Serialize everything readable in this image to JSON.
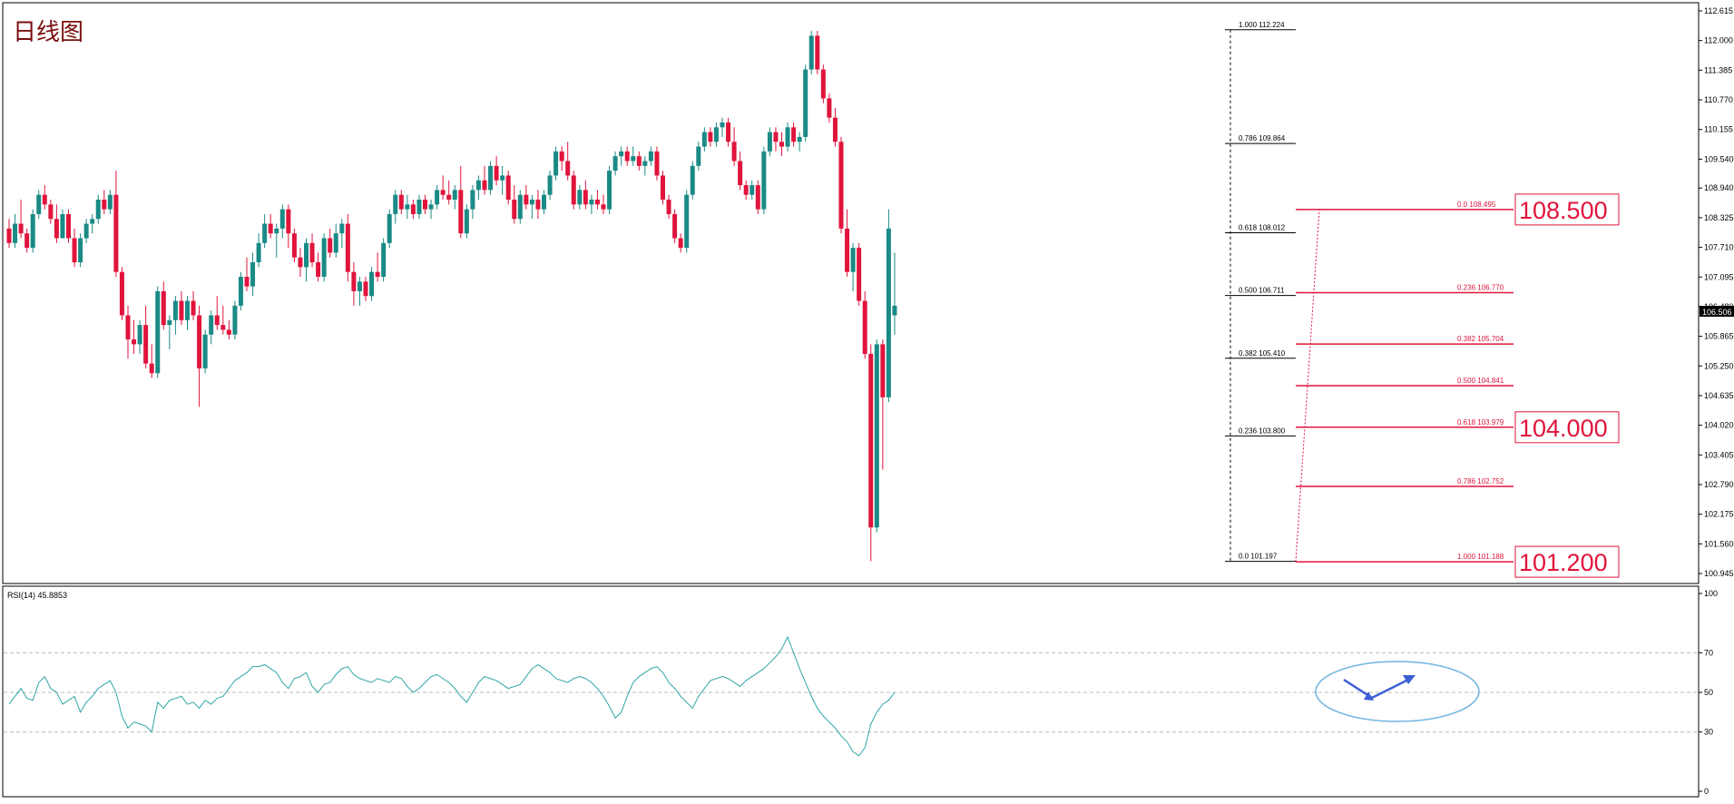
{
  "title": "日线图",
  "rsi_label": "RSI(14) 45.8853",
  "current_price": "106.506",
  "colors": {
    "bull": "#1a8a86",
    "bear": "#e0143c",
    "fib_left": "#000000",
    "fib_right": "#e0143c",
    "rsi_line": "#2fa6a6",
    "ellipse": "#6fb3e0",
    "arrow": "#3d5fd6",
    "title": "#7a0f0f"
  },
  "chart_data": [
    {
      "type": "candlestick",
      "title": "日线图",
      "ylim": [
        100.945,
        112.615
      ],
      "y_ticks": [
        "112.615",
        "112.000",
        "111.385",
        "110.770",
        "110.155",
        "109.540",
        "108.940",
        "108.325",
        "107.710",
        "107.095",
        "106.480",
        "105.865",
        "105.250",
        "104.635",
        "104.020",
        "103.405",
        "102.790",
        "102.175",
        "101.560",
        "100.945"
      ],
      "candles": [
        [
          108.1,
          108.3,
          107.7,
          107.8
        ],
        [
          107.8,
          108.4,
          107.7,
          108.2
        ],
        [
          108.2,
          108.7,
          107.9,
          108.0
        ],
        [
          108.0,
          108.1,
          107.6,
          107.7
        ],
        [
          107.7,
          108.5,
          107.6,
          108.4
        ],
        [
          108.4,
          108.9,
          108.3,
          108.8
        ],
        [
          108.8,
          109.0,
          108.5,
          108.6
        ],
        [
          108.6,
          108.7,
          108.2,
          108.3
        ],
        [
          108.3,
          108.6,
          107.8,
          107.9
        ],
        [
          107.9,
          108.5,
          107.9,
          108.4
        ],
        [
          108.4,
          108.5,
          107.8,
          107.9
        ],
        [
          107.9,
          108.1,
          107.3,
          107.4
        ],
        [
          107.4,
          108.0,
          107.3,
          107.9
        ],
        [
          107.9,
          108.3,
          107.8,
          108.2
        ],
        [
          108.2,
          108.4,
          108.0,
          108.3
        ],
        [
          108.3,
          108.8,
          108.2,
          108.7
        ],
        [
          108.7,
          108.9,
          108.4,
          108.5
        ],
        [
          108.5,
          108.9,
          108.4,
          108.8
        ],
        [
          108.8,
          109.3,
          107.1,
          107.2
        ],
        [
          107.2,
          107.3,
          106.2,
          106.3
        ],
        [
          106.3,
          106.5,
          105.4,
          105.8
        ],
        [
          105.8,
          106.2,
          105.5,
          105.7
        ],
        [
          105.7,
          106.2,
          105.5,
          106.1
        ],
        [
          106.1,
          106.5,
          105.2,
          105.3
        ],
        [
          105.3,
          105.7,
          105.0,
          105.1
        ],
        [
          105.1,
          106.9,
          105.0,
          106.8
        ],
        [
          106.8,
          107.0,
          106.0,
          106.1
        ],
        [
          106.1,
          106.3,
          105.6,
          106.2
        ],
        [
          106.2,
          106.7,
          105.9,
          106.6
        ],
        [
          106.6,
          106.8,
          106.1,
          106.2
        ],
        [
          106.2,
          106.7,
          106.0,
          106.6
        ],
        [
          106.6,
          106.8,
          106.2,
          106.3
        ],
        [
          106.3,
          106.5,
          104.4,
          105.2
        ],
        [
          105.2,
          106.0,
          105.1,
          105.9
        ],
        [
          105.9,
          106.4,
          105.7,
          106.3
        ],
        [
          106.3,
          106.7,
          106.0,
          106.1
        ],
        [
          106.1,
          106.5,
          105.9,
          106.0
        ],
        [
          106.0,
          106.2,
          105.8,
          105.9
        ],
        [
          105.9,
          106.6,
          105.8,
          106.5
        ],
        [
          106.5,
          107.2,
          106.4,
          107.1
        ],
        [
          107.1,
          107.5,
          106.8,
          106.9
        ],
        [
          106.9,
          107.6,
          106.7,
          107.4
        ],
        [
          107.4,
          108.0,
          107.3,
          107.8
        ],
        [
          107.8,
          108.4,
          107.7,
          108.2
        ],
        [
          108.2,
          108.4,
          107.9,
          108.0
        ],
        [
          108.0,
          108.2,
          107.5,
          108.1
        ],
        [
          108.1,
          108.6,
          107.9,
          108.5
        ],
        [
          108.5,
          108.6,
          107.7,
          108.0
        ],
        [
          108.0,
          108.1,
          107.4,
          107.5
        ],
        [
          107.5,
          107.7,
          107.1,
          107.3
        ],
        [
          107.3,
          107.9,
          107.0,
          107.8
        ],
        [
          107.8,
          108.0,
          107.3,
          107.4
        ],
        [
          107.4,
          107.6,
          107.0,
          107.1
        ],
        [
          107.1,
          108.0,
          107.0,
          107.9
        ],
        [
          107.9,
          108.1,
          107.5,
          107.6
        ],
        [
          107.6,
          108.2,
          107.5,
          108.0
        ],
        [
          108.0,
          108.3,
          107.7,
          108.2
        ],
        [
          108.2,
          108.4,
          107.0,
          107.2
        ],
        [
          107.2,
          107.4,
          106.5,
          106.8
        ],
        [
          106.8,
          107.1,
          106.5,
          107.0
        ],
        [
          107.0,
          107.1,
          106.6,
          106.7
        ],
        [
          106.7,
          107.3,
          106.6,
          107.2
        ],
        [
          107.2,
          107.6,
          107.0,
          107.1
        ],
        [
          107.1,
          107.9,
          107.0,
          107.8
        ],
        [
          107.8,
          108.5,
          107.7,
          108.4
        ],
        [
          108.4,
          108.9,
          108.2,
          108.8
        ],
        [
          108.8,
          108.9,
          108.4,
          108.5
        ],
        [
          108.5,
          108.8,
          108.3,
          108.6
        ],
        [
          108.6,
          108.7,
          108.3,
          108.4
        ],
        [
          108.4,
          108.8,
          108.3,
          108.7
        ],
        [
          108.7,
          108.8,
          108.4,
          108.5
        ],
        [
          108.5,
          108.7,
          108.3,
          108.6
        ],
        [
          108.6,
          109.0,
          108.5,
          108.9
        ],
        [
          108.9,
          109.2,
          108.7,
          108.8
        ],
        [
          108.8,
          109.1,
          108.6,
          108.7
        ],
        [
          108.7,
          109.0,
          108.5,
          108.9
        ],
        [
          108.9,
          109.4,
          107.9,
          108.0
        ],
        [
          108.0,
          108.6,
          107.9,
          108.5
        ],
        [
          108.5,
          109.0,
          108.3,
          108.9
        ],
        [
          108.9,
          109.2,
          108.7,
          109.1
        ],
        [
          109.1,
          109.4,
          108.8,
          108.9
        ],
        [
          108.9,
          109.5,
          108.8,
          109.4
        ],
        [
          109.4,
          109.6,
          109.0,
          109.1
        ],
        [
          109.1,
          109.4,
          108.8,
          109.2
        ],
        [
          109.2,
          109.3,
          108.6,
          108.7
        ],
        [
          108.7,
          109.0,
          108.2,
          108.3
        ],
        [
          108.3,
          108.9,
          108.2,
          108.8
        ],
        [
          108.8,
          109.0,
          108.5,
          108.6
        ],
        [
          108.6,
          108.8,
          108.3,
          108.7
        ],
        [
          108.7,
          108.9,
          108.3,
          108.5
        ],
        [
          108.5,
          108.9,
          108.4,
          108.8
        ],
        [
          108.8,
          109.3,
          108.7,
          109.2
        ],
        [
          109.2,
          109.8,
          109.1,
          109.7
        ],
        [
          109.7,
          109.8,
          109.3,
          109.5
        ],
        [
          109.5,
          109.9,
          109.1,
          109.2
        ],
        [
          109.2,
          109.3,
          108.5,
          108.6
        ],
        [
          108.6,
          109.0,
          108.5,
          108.9
        ],
        [
          108.9,
          109.1,
          108.5,
          108.6
        ],
        [
          108.6,
          108.8,
          108.4,
          108.7
        ],
        [
          108.7,
          108.9,
          108.5,
          108.6
        ],
        [
          108.6,
          108.8,
          108.4,
          108.5
        ],
        [
          108.5,
          109.4,
          108.4,
          109.3
        ],
        [
          109.3,
          109.7,
          109.2,
          109.6
        ],
        [
          109.6,
          109.8,
          109.4,
          109.7
        ],
        [
          109.7,
          109.8,
          109.4,
          109.5
        ],
        [
          109.5,
          109.8,
          109.4,
          109.6
        ],
        [
          109.6,
          109.7,
          109.3,
          109.4
        ],
        [
          109.4,
          109.6,
          109.2,
          109.5
        ],
        [
          109.5,
          109.8,
          109.4,
          109.7
        ],
        [
          109.7,
          109.8,
          109.1,
          109.2
        ],
        [
          109.2,
          109.3,
          108.6,
          108.7
        ],
        [
          108.7,
          108.8,
          108.3,
          108.4
        ],
        [
          108.4,
          108.5,
          107.8,
          107.9
        ],
        [
          107.9,
          108.0,
          107.6,
          107.7
        ],
        [
          107.7,
          108.9,
          107.6,
          108.8
        ],
        [
          108.8,
          109.5,
          108.7,
          109.4
        ],
        [
          109.4,
          109.9,
          109.3,
          109.8
        ],
        [
          109.8,
          110.2,
          109.7,
          110.1
        ],
        [
          110.1,
          110.2,
          109.8,
          109.9
        ],
        [
          109.9,
          110.3,
          109.8,
          110.2
        ],
        [
          110.2,
          110.4,
          110.0,
          110.3
        ],
        [
          110.3,
          110.4,
          109.8,
          109.9
        ],
        [
          109.9,
          110.2,
          109.4,
          109.5
        ],
        [
          109.5,
          109.7,
          108.9,
          109.0
        ],
        [
          109.0,
          109.1,
          108.7,
          108.8
        ],
        [
          108.8,
          109.1,
          108.7,
          109.0
        ],
        [
          109.0,
          109.1,
          108.4,
          108.5
        ],
        [
          108.5,
          109.8,
          108.4,
          109.7
        ],
        [
          109.7,
          110.2,
          109.6,
          110.1
        ],
        [
          110.1,
          110.2,
          109.7,
          109.9
        ],
        [
          109.9,
          110.1,
          109.6,
          109.8
        ],
        [
          109.8,
          110.3,
          109.7,
          110.2
        ],
        [
          110.2,
          110.3,
          109.8,
          109.9
        ],
        [
          109.9,
          110.1,
          109.7,
          110.0
        ],
        [
          110.0,
          111.5,
          109.9,
          111.4
        ],
        [
          111.4,
          112.2,
          111.3,
          112.1
        ],
        [
          112.1,
          112.2,
          111.3,
          111.4
        ],
        [
          111.4,
          111.5,
          110.7,
          110.8
        ],
        [
          110.8,
          110.9,
          110.3,
          110.4
        ],
        [
          110.4,
          110.6,
          109.8,
          109.9
        ],
        [
          109.9,
          110.0,
          108.0,
          108.1
        ],
        [
          108.1,
          108.5,
          107.1,
          107.2
        ],
        [
          107.2,
          107.8,
          106.8,
          107.7
        ],
        [
          107.7,
          107.8,
          106.5,
          106.6
        ],
        [
          106.6,
          106.8,
          105.4,
          105.5
        ],
        [
          105.5,
          105.7,
          101.2,
          101.9
        ],
        [
          101.9,
          105.8,
          101.8,
          105.7
        ],
        [
          105.7,
          105.8,
          103.1,
          104.6
        ],
        [
          104.6,
          108.5,
          104.5,
          108.1
        ],
        [
          106.3,
          107.6,
          105.9,
          106.5
        ]
      ],
      "fib_left": [
        {
          "label": "1.000  112.224",
          "value": 112.224
        },
        {
          "label": "0.786  109.864",
          "value": 109.864
        },
        {
          "label": "0.618  108.012",
          "value": 108.012
        },
        {
          "label": "0.500  106.711",
          "value": 106.711
        },
        {
          "label": "0.382  105.410",
          "value": 105.41
        },
        {
          "label": "0.236  103.800",
          "value": 103.8
        },
        {
          "label": "0.0  101.197",
          "value": 101.197
        }
      ],
      "fib_right": [
        {
          "label": "0.0  108.495",
          "value": 108.495
        },
        {
          "label": "0.236  106.770",
          "value": 106.77
        },
        {
          "label": "0.382  105.704",
          "value": 105.704
        },
        {
          "label": "0.500  104.841",
          "value": 104.841
        },
        {
          "label": "0.618  103.979",
          "value": 103.979
        },
        {
          "label": "0.786  102.752",
          "value": 102.752
        },
        {
          "label": "1.000  101.188",
          "value": 101.188
        }
      ],
      "level_boxes": [
        {
          "label": "108.500",
          "value": 108.495
        },
        {
          "label": "104.000",
          "value": 103.979
        },
        {
          "label": "101.200",
          "value": 101.188
        }
      ]
    },
    {
      "type": "line",
      "title": "RSI(14) 45.8853",
      "ylim": [
        0,
        100
      ],
      "y_ticks": [
        "100",
        "70",
        "50",
        "30",
        "0"
      ],
      "series": [
        {
          "values": [
            44,
            48,
            52,
            47,
            46,
            55,
            58,
            52,
            50,
            44,
            46,
            48,
            40,
            45,
            48,
            52,
            54,
            56,
            50,
            38,
            32,
            35,
            34,
            33,
            30,
            45,
            42,
            46,
            47,
            48,
            44,
            45,
            42,
            46,
            44,
            47,
            48,
            52,
            56,
            58,
            60,
            63,
            63,
            64,
            62,
            60,
            55,
            52,
            57,
            58,
            60,
            53,
            50,
            54,
            55,
            59,
            62,
            63,
            59,
            57,
            56,
            55,
            57,
            56,
            55,
            58,
            57,
            53,
            50,
            52,
            55,
            58,
            59,
            57,
            55,
            52,
            48,
            45,
            50,
            55,
            58,
            57,
            56,
            54,
            52,
            53,
            54,
            58,
            62,
            64,
            62,
            60,
            57,
            56,
            55,
            57,
            58,
            57,
            55,
            52,
            48,
            43,
            37,
            40,
            48,
            55,
            58,
            60,
            62,
            63,
            60,
            55,
            52,
            48,
            45,
            42,
            48,
            52,
            56,
            57,
            58,
            57,
            55,
            53,
            56,
            58,
            60,
            62,
            65,
            68,
            72,
            78,
            70,
            62,
            55,
            48,
            42,
            38,
            35,
            32,
            28,
            25,
            20,
            18,
            22,
            34,
            40,
            44,
            46,
            50
          ]
        }
      ]
    }
  ]
}
